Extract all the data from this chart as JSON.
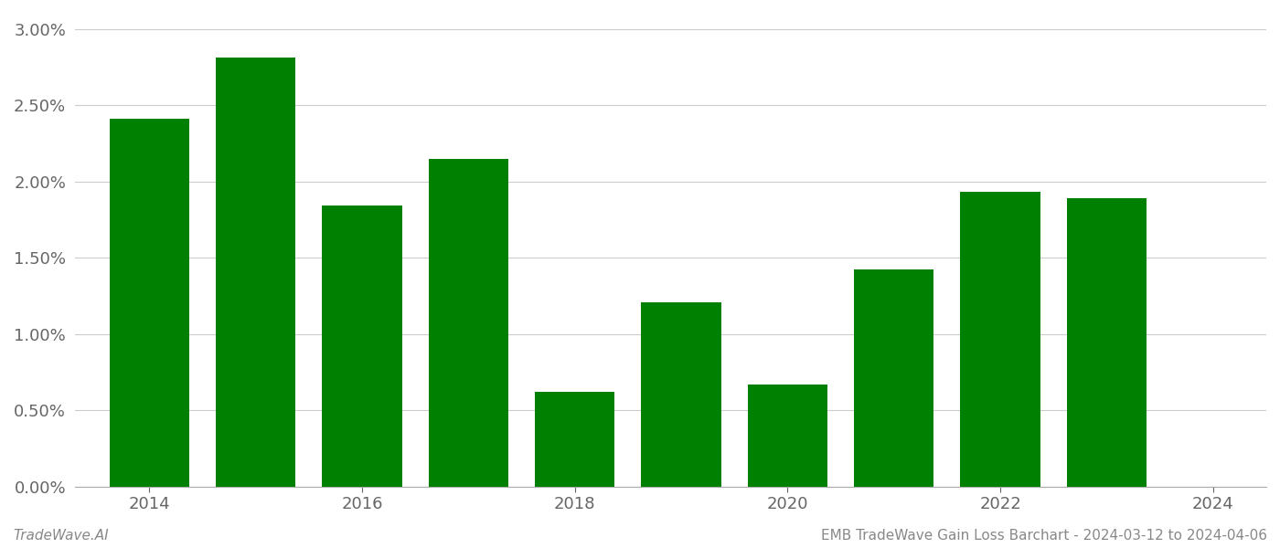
{
  "years": [
    2014,
    2015,
    2016,
    2017,
    2018,
    2019,
    2020,
    2021,
    2022,
    2023
  ],
  "values": [
    0.0241,
    0.0281,
    0.0184,
    0.0215,
    0.0062,
    0.0121,
    0.0067,
    0.0142,
    0.0193,
    0.0189
  ],
  "bar_color": "#008000",
  "footer_left": "TradeWave.AI",
  "footer_right": "EMB TradeWave Gain Loss Barchart - 2024-03-12 to 2024-04-06",
  "ylim": [
    0,
    0.031
  ],
  "ytick_values": [
    0.0,
    0.005,
    0.01,
    0.015,
    0.02,
    0.025,
    0.03
  ],
  "background_color": "#ffffff",
  "grid_color": "#cccccc",
  "bar_width": 0.75,
  "xtick_fontsize": 13,
  "ytick_fontsize": 13,
  "footer_fontsize": 11,
  "xtick_label_positions": [
    2014,
    2016,
    2018,
    2020,
    2022,
    2024
  ],
  "xlim_min": 2013.3,
  "xlim_max": 2024.5
}
